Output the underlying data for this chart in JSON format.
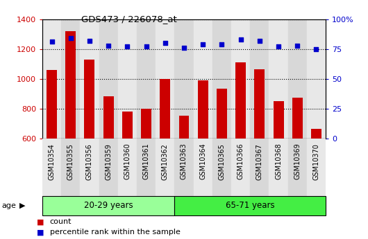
{
  "title": "GDS473 / 226078_at",
  "categories": [
    "GSM10354",
    "GSM10355",
    "GSM10356",
    "GSM10359",
    "GSM10360",
    "GSM10361",
    "GSM10362",
    "GSM10363",
    "GSM10364",
    "GSM10365",
    "GSM10366",
    "GSM10367",
    "GSM10368",
    "GSM10369",
    "GSM10370"
  ],
  "count_values": [
    1060,
    1320,
    1130,
    885,
    780,
    800,
    1000,
    755,
    990,
    935,
    1110,
    1065,
    850,
    875,
    665
  ],
  "percentile_values": [
    81,
    84,
    82,
    78,
    77,
    77,
    80,
    76,
    79,
    79,
    83,
    82,
    77,
    78,
    75
  ],
  "ylim_left": [
    600,
    1400
  ],
  "ylim_right": [
    0,
    100
  ],
  "group1_label": "20-29 years",
  "group2_label": "65-71 years",
  "group1_count": 7,
  "group2_count": 8,
  "bar_color": "#cc0000",
  "scatter_color": "#0000cc",
  "group1_color": "#99ff99",
  "group2_color": "#44ee44",
  "xlabel_color": "#cc0000",
  "ylabel_right_color": "#0000cc",
  "plot_bg_color": "#ffffff",
  "column_bg_even": "#e8e8e8",
  "column_bg_odd": "#d8d8d8",
  "age_label": "age",
  "legend_count": "count",
  "legend_percentile": "percentile rank within the sample",
  "yticks_left": [
    600,
    800,
    1000,
    1200,
    1400
  ],
  "yticks_right": [
    0,
    25,
    50,
    75,
    100
  ],
  "ytick_right_labels": [
    "0",
    "25",
    "50",
    "75",
    "100%"
  ]
}
